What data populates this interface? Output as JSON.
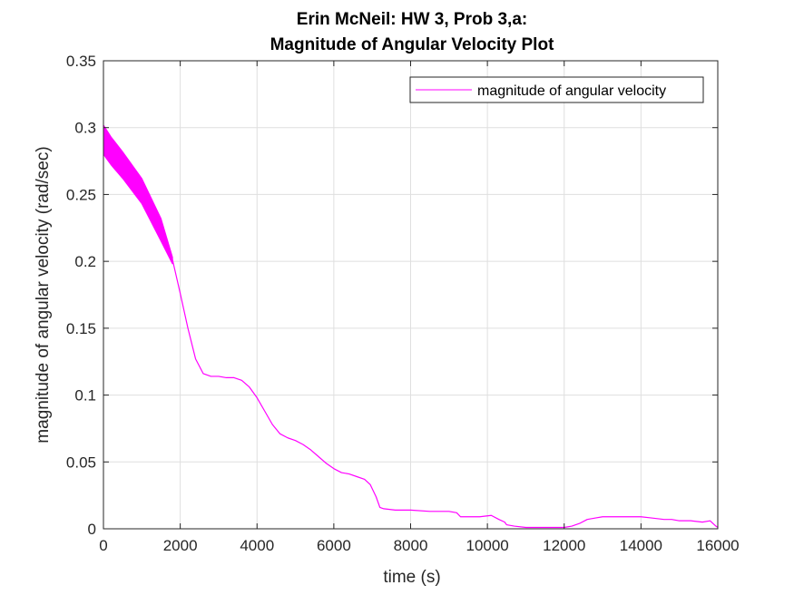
{
  "chart_data": {
    "type": "line",
    "title": [
      "Erin McNeil: HW 3, Prob 3,a:",
      "Magnitude of Angular Velocity Plot"
    ],
    "xlabel": "time (s)",
    "ylabel": "magnitude of angular velocity (rad/sec)",
    "xlim": [
      0,
      16000
    ],
    "ylim": [
      0,
      0.35
    ],
    "xticks": [
      0,
      2000,
      4000,
      6000,
      8000,
      10000,
      12000,
      14000,
      16000
    ],
    "xtick_labels": [
      "0",
      "2000",
      "4000",
      "6000",
      "8000",
      "10000",
      "12000",
      "14000",
      "16000"
    ],
    "yticks": [
      0,
      0.05,
      0.1,
      0.15,
      0.2,
      0.25,
      0.3,
      0.35
    ],
    "ytick_labels": [
      "0",
      "0.05",
      "0.1",
      "0.15",
      "0.2",
      "0.25",
      "0.3",
      "0.35"
    ],
    "grid": true,
    "legend_position": "top-right",
    "series": [
      {
        "name": "magnitude of angular velocity",
        "color": "#ff00ff",
        "band": {
          "x": [
            0,
            200,
            500,
            1000,
            1500,
            1800
          ],
          "upper": [
            0.302,
            0.293,
            0.282,
            0.262,
            0.232,
            0.203
          ],
          "lower": [
            0.28,
            0.272,
            0.262,
            0.243,
            0.215,
            0.198
          ]
        },
        "x": [
          0,
          200,
          500,
          1000,
          1500,
          1800,
          2000,
          2200,
          2400,
          2600,
          2800,
          3000,
          3200,
          3400,
          3600,
          3800,
          4000,
          4200,
          4400,
          4600,
          4800,
          5000,
          5200,
          5400,
          5600,
          5800,
          6000,
          6200,
          6400,
          6600,
          6800,
          6950,
          7100,
          7200,
          7300,
          7600,
          8000,
          8500,
          9000,
          9200,
          9300,
          9500,
          9800,
          10100,
          10300,
          10450,
          10500,
          10700,
          11000,
          11200,
          11500,
          11800,
          12000,
          12200,
          12400,
          12600,
          12800,
          13000,
          13500,
          14000,
          14300,
          14600,
          14800,
          15000,
          15300,
          15600,
          15800,
          15950,
          16000
        ],
        "values": [
          0.291,
          0.283,
          0.272,
          0.253,
          0.224,
          0.201,
          0.176,
          0.15,
          0.127,
          0.116,
          0.114,
          0.114,
          0.113,
          0.113,
          0.111,
          0.106,
          0.098,
          0.088,
          0.078,
          0.071,
          0.068,
          0.066,
          0.063,
          0.059,
          0.054,
          0.049,
          0.045,
          0.042,
          0.041,
          0.039,
          0.037,
          0.033,
          0.024,
          0.016,
          0.015,
          0.014,
          0.014,
          0.013,
          0.013,
          0.012,
          0.009,
          0.009,
          0.009,
          0.01,
          0.007,
          0.005,
          0.003,
          0.002,
          0.001,
          0.001,
          0.001,
          0.001,
          0.001,
          0.002,
          0.004,
          0.007,
          0.008,
          0.009,
          0.009,
          0.009,
          0.008,
          0.007,
          0.007,
          0.006,
          0.006,
          0.005,
          0.006,
          0.002,
          0.001
        ]
      }
    ]
  }
}
